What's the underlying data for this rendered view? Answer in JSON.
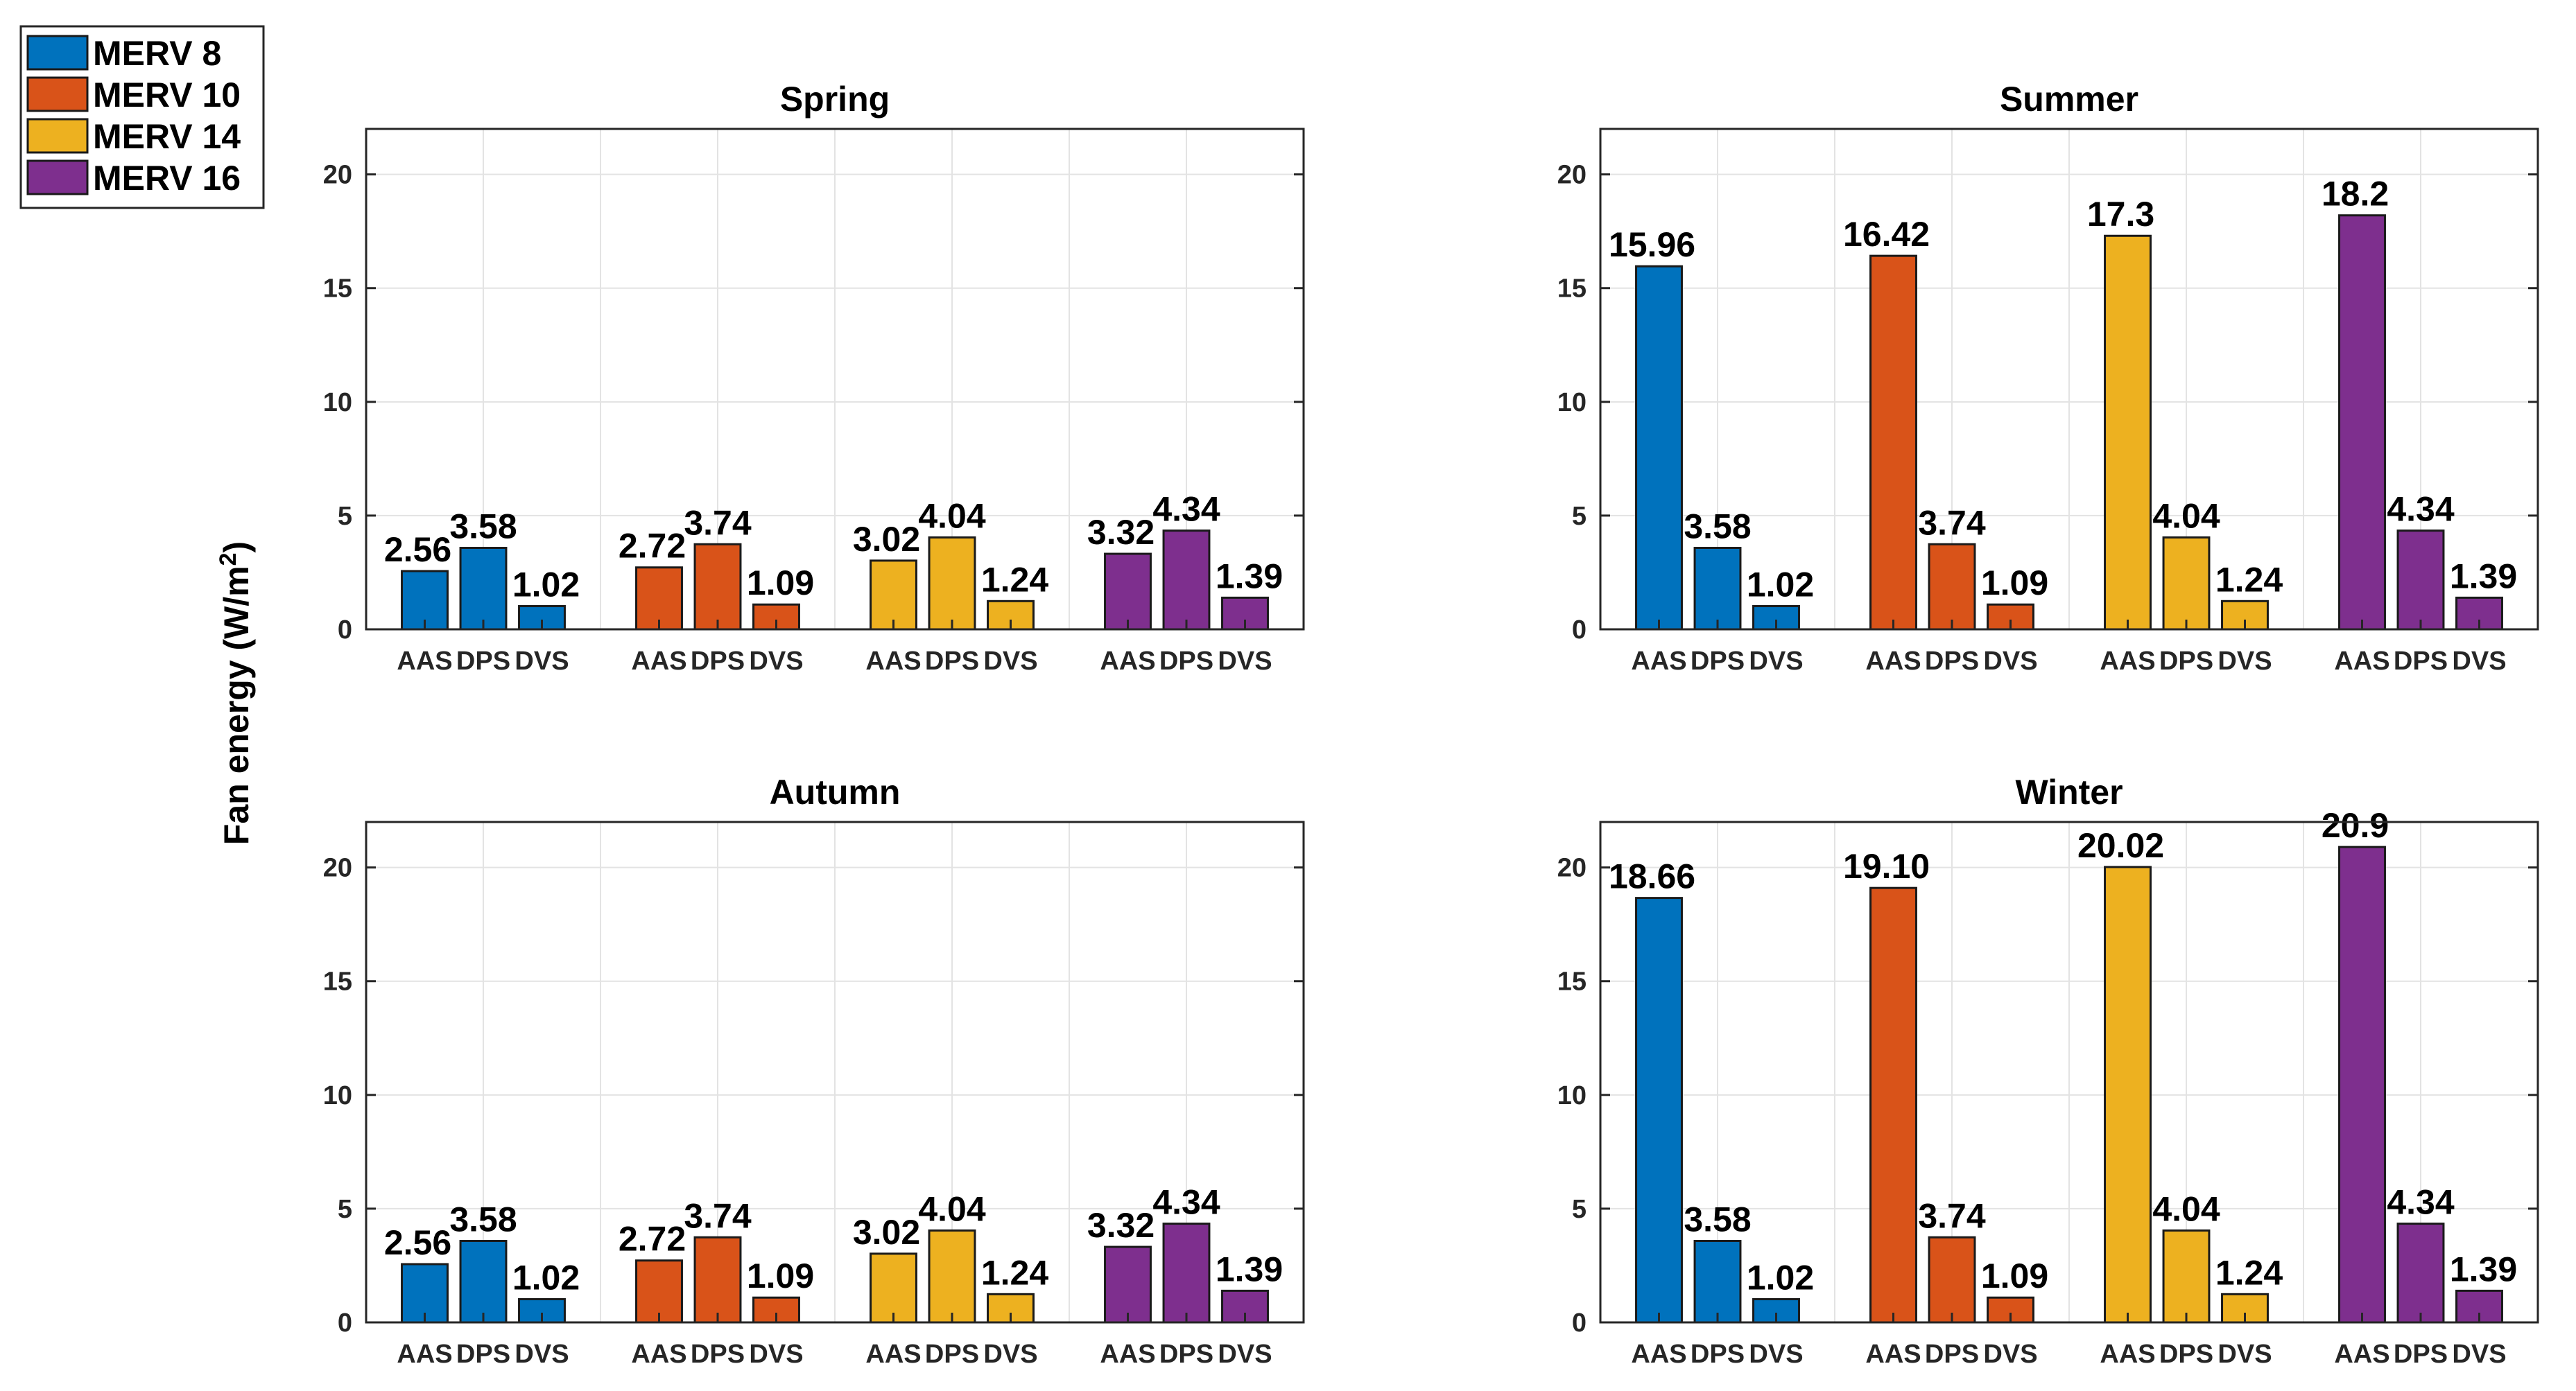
{
  "chart_data": {
    "type": "bar",
    "ylabel": "Fan energy (W/m",
    "ylabel_sup": "2",
    "ylabel_close": ")",
    "ylim": [
      0,
      22
    ],
    "yticks": [
      0,
      5,
      10,
      15,
      20
    ],
    "legend": {
      "position": "top-left",
      "entries": [
        {
          "name": "MERV 8",
          "color": "#0072BD"
        },
        {
          "name": "MERV 10",
          "color": "#D95319"
        },
        {
          "name": "MERV 14",
          "color": "#EDB120"
        },
        {
          "name": "MERV 16",
          "color": "#7E2F8E"
        }
      ]
    },
    "subcategories": [
      "AAS",
      "DPS",
      "DVS"
    ],
    "panels": [
      {
        "title": "Spring",
        "series": [
          {
            "name": "MERV 8",
            "values": [
              2.56,
              3.58,
              1.02
            ],
            "labels": [
              "2.56",
              "3.58",
              "1.02"
            ]
          },
          {
            "name": "MERV 10",
            "values": [
              2.72,
              3.74,
              1.09
            ],
            "labels": [
              "2.72",
              "3.74",
              "1.09"
            ]
          },
          {
            "name": "MERV 14",
            "values": [
              3.02,
              4.04,
              1.24
            ],
            "labels": [
              "3.02",
              "4.04",
              "1.24"
            ]
          },
          {
            "name": "MERV 16",
            "values": [
              3.32,
              4.34,
              1.39
            ],
            "labels": [
              "3.32",
              "4.34",
              "1.39"
            ]
          }
        ]
      },
      {
        "title": "Summer",
        "series": [
          {
            "name": "MERV 8",
            "values": [
              15.96,
              3.58,
              1.02
            ],
            "labels": [
              "15.96",
              "3.58",
              "1.02"
            ]
          },
          {
            "name": "MERV 10",
            "values": [
              16.42,
              3.74,
              1.09
            ],
            "labels": [
              "16.42",
              "3.74",
              "1.09"
            ]
          },
          {
            "name": "MERV 14",
            "values": [
              17.3,
              4.04,
              1.24
            ],
            "labels": [
              "17.3",
              "4.04",
              "1.24"
            ]
          },
          {
            "name": "MERV 16",
            "values": [
              18.2,
              4.34,
              1.39
            ],
            "labels": [
              "18.2",
              "4.34",
              "1.39"
            ]
          }
        ]
      },
      {
        "title": "Autumn",
        "series": [
          {
            "name": "MERV 8",
            "values": [
              2.56,
              3.58,
              1.02
            ],
            "labels": [
              "2.56",
              "3.58",
              "1.02"
            ]
          },
          {
            "name": "MERV 10",
            "values": [
              2.72,
              3.74,
              1.09
            ],
            "labels": [
              "2.72",
              "3.74",
              "1.09"
            ]
          },
          {
            "name": "MERV 14",
            "values": [
              3.02,
              4.04,
              1.24
            ],
            "labels": [
              "3.02",
              "4.04",
              "1.24"
            ]
          },
          {
            "name": "MERV 16",
            "values": [
              3.32,
              4.34,
              1.39
            ],
            "labels": [
              "3.32",
              "4.34",
              "1.39"
            ]
          }
        ]
      },
      {
        "title": "Winter",
        "series": [
          {
            "name": "MERV 8",
            "values": [
              18.66,
              3.58,
              1.02
            ],
            "labels": [
              "18.66",
              "3.58",
              "1.02"
            ]
          },
          {
            "name": "MERV 10",
            "values": [
              19.1,
              3.74,
              1.09
            ],
            "labels": [
              "19.10",
              "3.74",
              "1.09"
            ]
          },
          {
            "name": "MERV 14",
            "values": [
              20.02,
              4.04,
              1.24
            ],
            "labels": [
              "20.02",
              "4.04",
              "1.24"
            ]
          },
          {
            "name": "MERV 16",
            "values": [
              20.9,
              4.34,
              1.39
            ],
            "labels": [
              "20.9",
              "4.34",
              "1.39"
            ]
          }
        ]
      }
    ]
  }
}
